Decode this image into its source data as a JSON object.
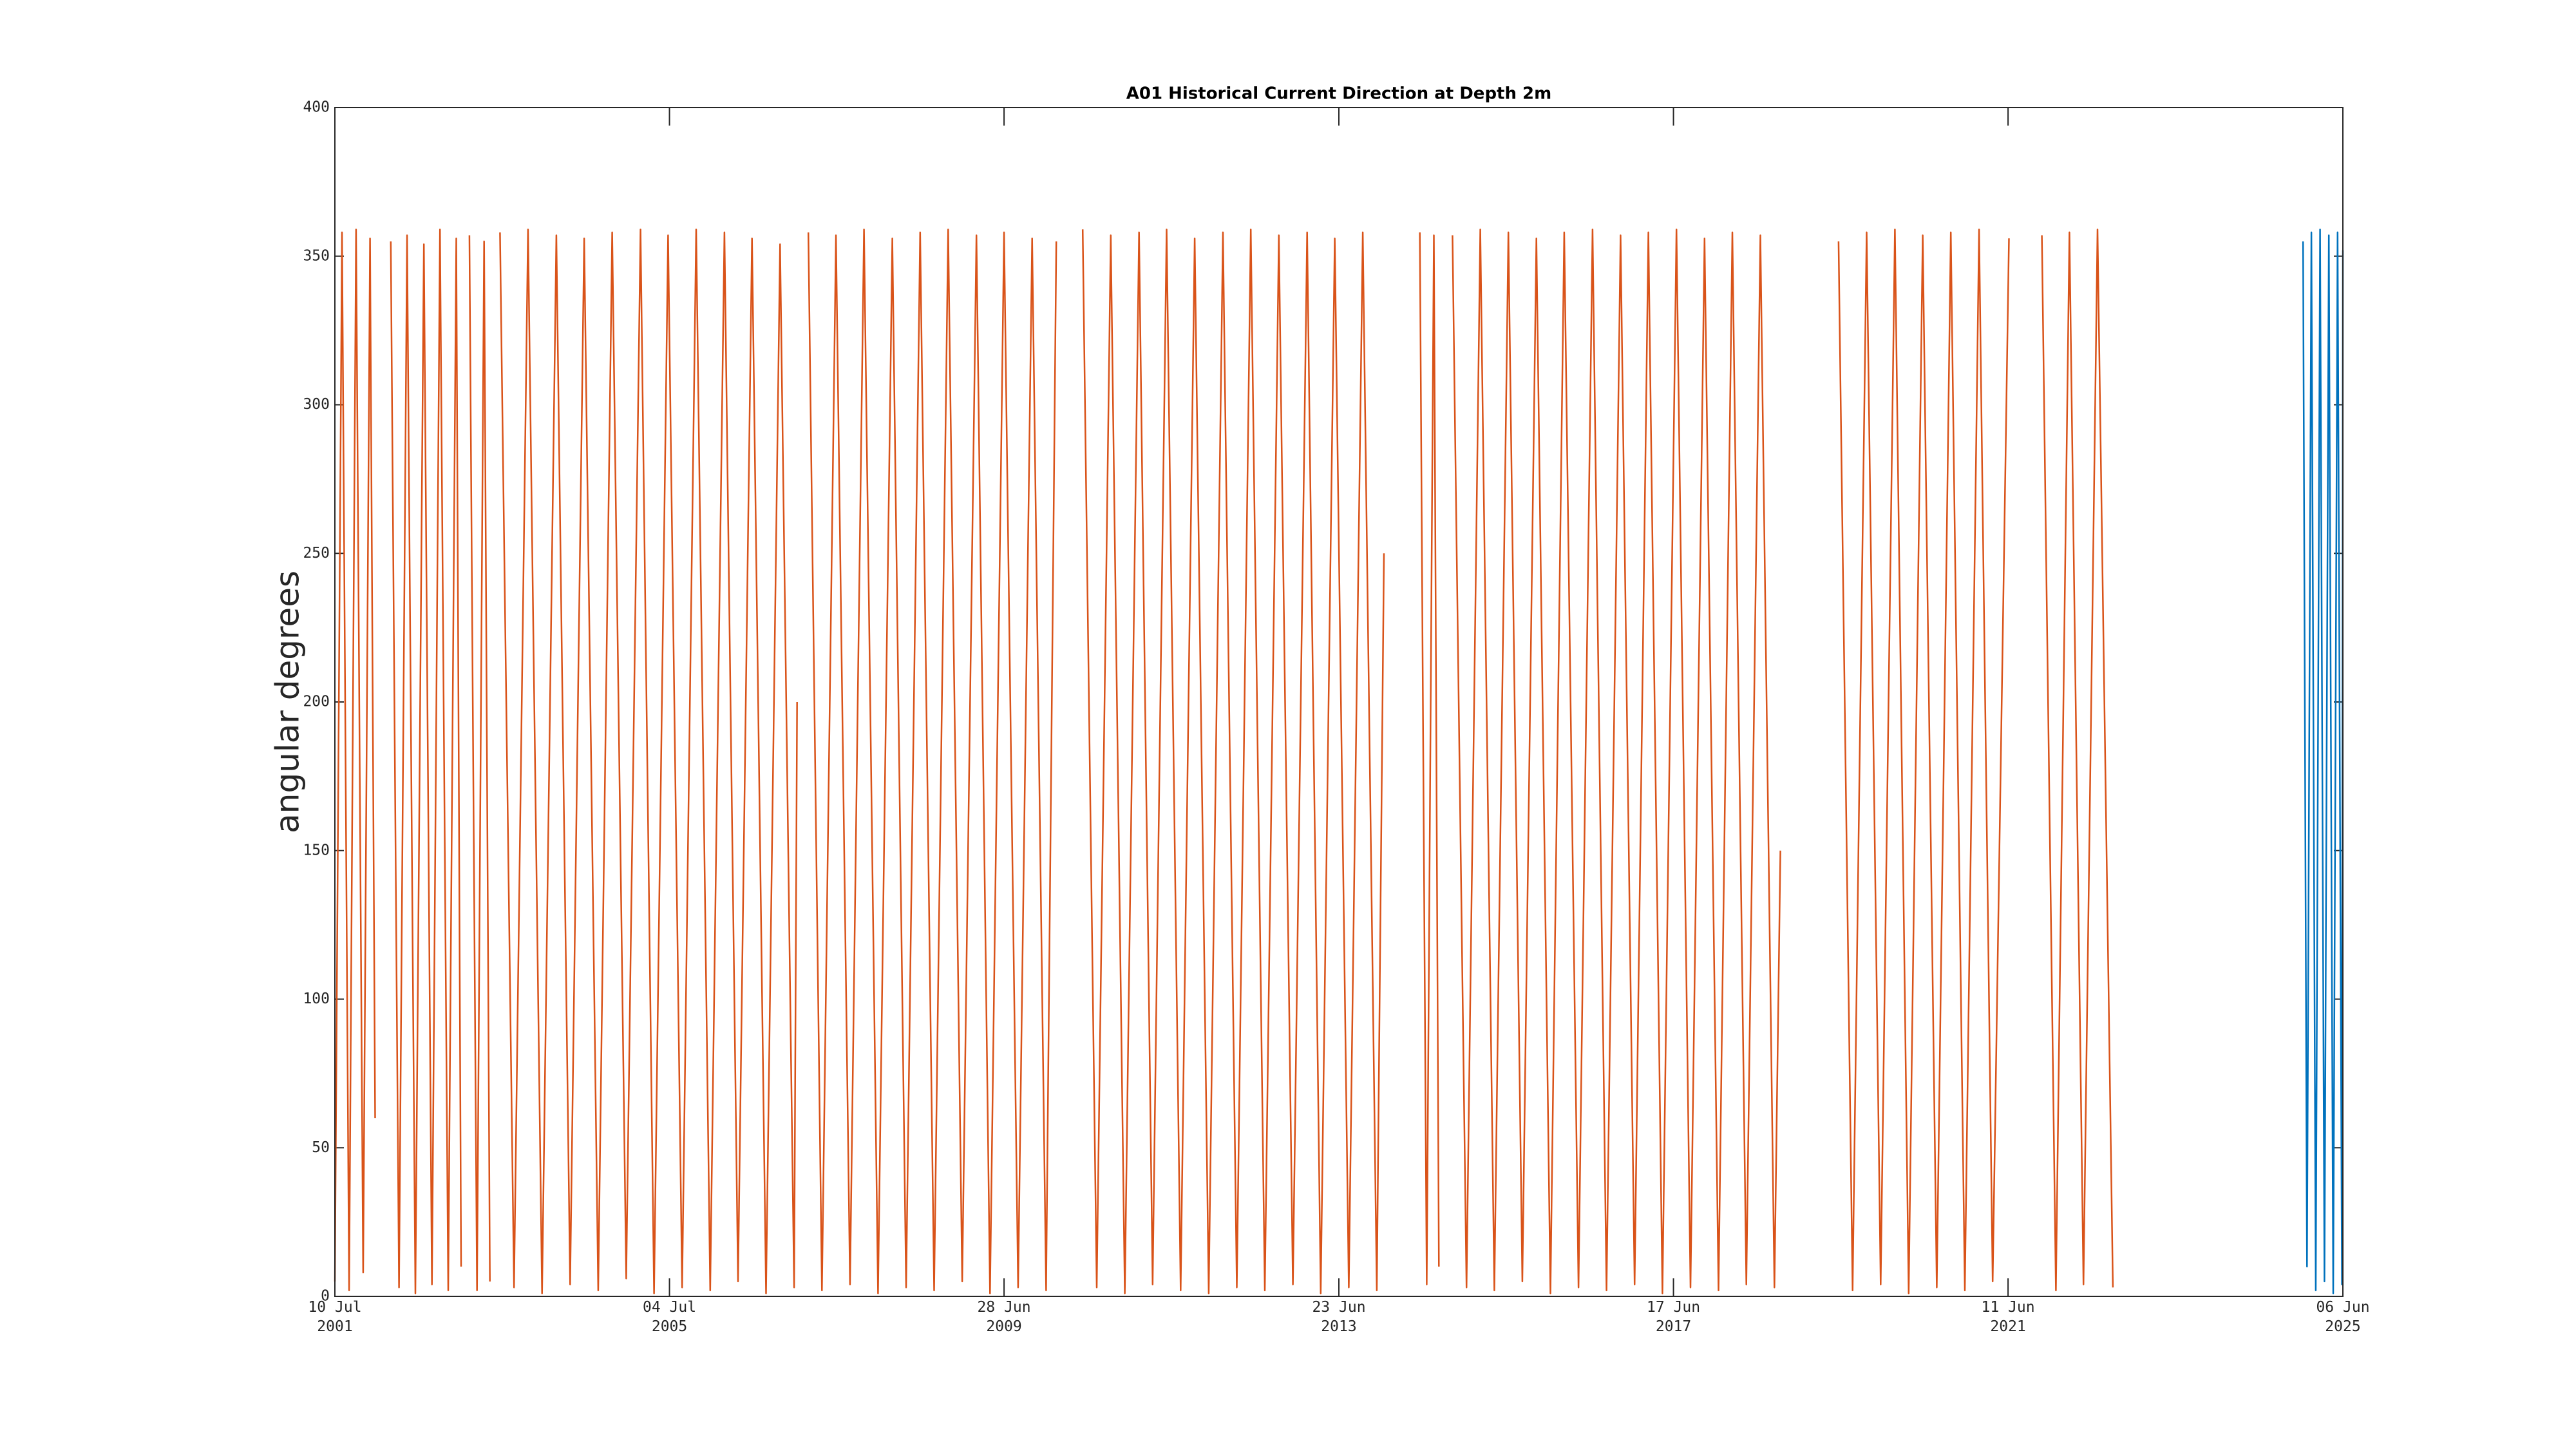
{
  "chart_data": {
    "type": "line",
    "title": "A01 Historical Current Direction at Depth 2m",
    "y_label": "angular degrees",
    "xlim": [
      "2001-07-10",
      "2025-06-06"
    ],
    "xticks": [
      {
        "value": "2001-07-10",
        "label": "10 Jul\n2001"
      },
      {
        "value": "2005-07-04",
        "label": "04 Jul\n2005"
      },
      {
        "value": "2009-06-28",
        "label": "28 Jun\n2009"
      },
      {
        "value": "2013-06-23",
        "label": "23 Jun\n2013"
      },
      {
        "value": "2017-06-17",
        "label": "17 Jun\n2017"
      },
      {
        "value": "2021-06-11",
        "label": "11 Jun\n2021"
      },
      {
        "value": "2025-06-06",
        "label": "06 Jun\n2025"
      }
    ],
    "ylim": [
      0,
      400
    ],
    "yticks": [
      0,
      50,
      100,
      150,
      200,
      250,
      300,
      350,
      400
    ],
    "grid": false,
    "series": [
      {
        "color": "#d95319",
        "x": [
          "2001-07-10",
          "2001-08-10",
          "2001-09-10",
          "2001-10-10",
          "2001-11-10",
          "2001-12-10",
          "2002-01-01",
          "2002-02-01",
          "2002-03-10",
          "2002-04-15",
          "2002-05-20",
          "2002-06-25",
          "2002-08-01",
          "2002-09-05",
          "2002-10-10",
          "2002-11-15",
          "2002-12-20",
          "2003-01-10",
          "2003-01-25",
          "2003-02-15",
          "2003-03-20",
          "2003-04-20",
          "2003-05-15",
          "2003-06-01",
          "2003-06-28",
          "2003-08-28",
          "2003-10-28",
          "2003-12-28",
          "2004-02-28",
          "2004-04-28",
          "2004-06-28",
          "2004-08-28",
          "2004-10-28",
          "2004-12-28",
          "2005-02-28",
          "2005-04-28",
          "2005-06-28",
          "2005-08-28",
          "2005-10-28",
          "2005-12-28",
          "2006-02-28",
          "2006-04-28",
          "2006-06-28",
          "2006-08-28",
          "2006-10-28",
          "2006-12-28",
          "2007-01-10",
          "2007-01-25",
          "2007-02-28",
          "2007-04-28",
          "2007-06-28",
          "2007-08-28",
          "2007-10-28",
          "2007-12-28",
          "2008-02-28",
          "2008-04-28",
          "2008-06-28",
          "2008-08-28",
          "2008-10-28",
          "2008-12-28",
          "2009-02-28",
          "2009-04-28",
          "2009-06-28",
          "2009-08-28",
          "2009-10-28",
          "2009-12-28",
          "2010-02-10",
          "2010-04-01",
          "2010-06-05",
          "2010-08-05",
          "2010-10-05",
          "2010-12-05",
          "2011-02-05",
          "2011-04-05",
          "2011-06-05",
          "2011-08-05",
          "2011-10-05",
          "2011-12-05",
          "2012-02-05",
          "2012-04-05",
          "2012-06-05",
          "2012-08-05",
          "2012-10-05",
          "2012-12-05",
          "2013-02-05",
          "2013-04-05",
          "2013-06-05",
          "2013-08-05",
          "2013-10-05",
          "2013-12-05",
          "2014-01-05",
          "2014-03-01",
          "2014-06-10",
          "2014-07-10",
          "2014-08-10",
          "2014-09-01",
          "2014-10-01",
          "2014-10-30",
          "2014-12-30",
          "2015-02-28",
          "2015-04-30",
          "2015-06-30",
          "2015-08-30",
          "2015-10-30",
          "2015-12-30",
          "2016-02-28",
          "2016-04-30",
          "2016-06-30",
          "2016-08-30",
          "2016-10-30",
          "2016-12-30",
          "2017-02-28",
          "2017-04-30",
          "2017-06-30",
          "2017-08-30",
          "2017-10-30",
          "2017-12-30",
          "2018-02-28",
          "2018-04-30",
          "2018-06-30",
          "2018-08-30",
          "2018-09-25",
          "2019-01-01",
          "2019-06-05",
          "2019-08-05",
          "2019-10-05",
          "2019-12-05",
          "2020-02-05",
          "2020-04-05",
          "2020-06-05",
          "2020-08-05",
          "2020-10-05",
          "2020-12-05",
          "2021-02-05",
          "2021-04-05",
          "2021-06-15",
          "2021-08-15",
          "2021-11-05",
          "2022-01-05",
          "2022-03-05",
          "2022-05-05",
          "2022-07-05",
          "2022-09-10"
        ],
        "values": [
          5,
          358,
          2,
          359,
          8,
          356,
          60,
          null,
          355,
          3,
          357,
          1,
          354,
          4,
          359,
          2,
          356,
          10,
          null,
          357,
          2,
          355,
          5,
          null,
          358,
          3,
          359,
          1,
          357,
          4,
          356,
          2,
          358,
          6,
          359,
          1,
          357,
          3,
          359,
          2,
          358,
          5,
          356,
          1,
          354,
          3,
          200,
          null,
          358,
          2,
          357,
          4,
          359,
          1,
          356,
          3,
          358,
          2,
          359,
          5,
          357,
          1,
          358,
          3,
          356,
          2,
          355,
          null,
          359,
          3,
          357,
          1,
          358,
          4,
          359,
          2,
          356,
          1,
          358,
          3,
          359,
          2,
          357,
          4,
          358,
          1,
          356,
          3,
          358,
          2,
          250,
          null,
          358,
          4,
          357,
          10,
          null,
          357,
          3,
          359,
          2,
          358,
          5,
          356,
          1,
          358,
          3,
          359,
          2,
          357,
          4,
          358,
          1,
          359,
          3,
          356,
          2,
          358,
          4,
          357,
          3,
          150,
          null,
          355,
          2,
          358,
          4,
          359,
          1,
          357,
          3,
          358,
          2,
          359,
          5,
          356,
          null,
          357,
          2,
          358,
          4,
          359,
          3
        ]
      },
      {
        "color": "#0072bd",
        "x": [
          "2024-12-15",
          "2025-01-01",
          "2025-01-20",
          "2025-02-08",
          "2025-02-27",
          "2025-03-18",
          "2025-04-06",
          "2025-04-25",
          "2025-05-14",
          "2025-06-02",
          "2025-06-06"
        ],
        "values": [
          355,
          10,
          358,
          2,
          359,
          5,
          357,
          1,
          358,
          4,
          352
        ]
      }
    ]
  }
}
